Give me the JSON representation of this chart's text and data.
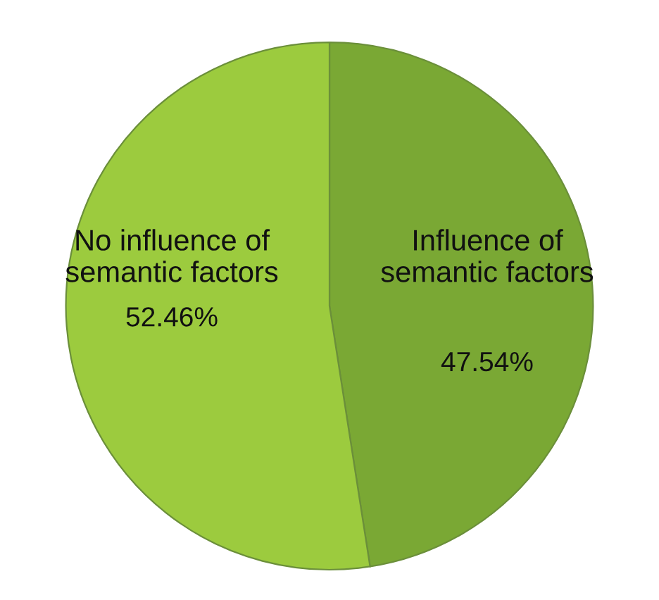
{
  "chart_data": {
    "type": "pie",
    "categories": [
      "Influence of\nsemantic factors",
      "No influence of\nsemantic factors"
    ],
    "values": [
      47.54,
      52.46
    ],
    "value_labels": [
      "47.54%",
      "52.46%"
    ],
    "colors": [
      "#7aa834",
      "#9ccb3e"
    ]
  }
}
